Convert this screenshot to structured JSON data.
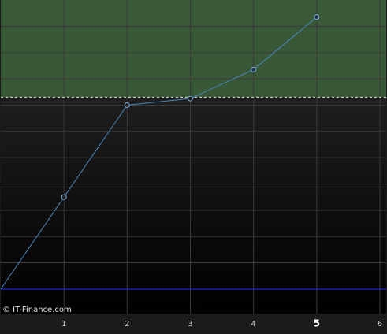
{
  "chart_data": {
    "type": "line",
    "x": [
      0,
      1,
      2,
      3,
      4,
      5
    ],
    "series": [
      {
        "color": "#4d86bd",
        "values": [
          0,
          3.5,
          7,
          7.25,
          8.35,
          10.35
        ]
      }
    ],
    "xlim": [
      0,
      6.1
    ],
    "xticks": [
      1,
      2,
      3,
      4,
      5,
      6
    ],
    "ylim": [
      -0.93,
      11
    ],
    "yticks": [
      1,
      2,
      3,
      4,
      5,
      6,
      7,
      8,
      9,
      10
    ],
    "grid": true,
    "threshold": {
      "value": 7.3,
      "color": "#3b5e3b"
    },
    "baseline": {
      "value": 0,
      "color": "#2a2aff"
    },
    "highlighted_xtick": 5,
    "watermark": "© IT-Finance.com"
  }
}
